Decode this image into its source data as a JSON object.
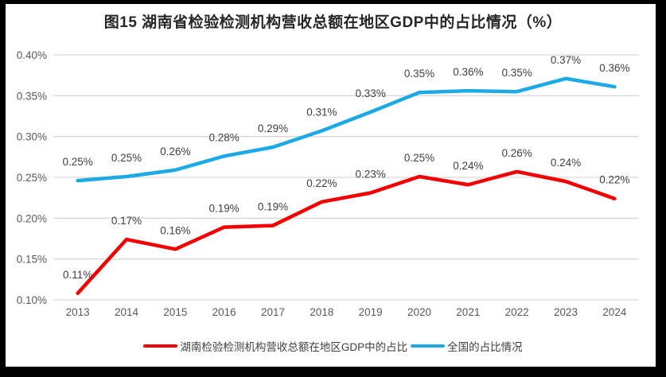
{
  "title": "图15 湖南省检验检测机构营收总额在地区GDP中的占比情况（%）",
  "colors": {
    "hunan": "#f40000",
    "national": "#1ca9e6",
    "grid": "#d9d9d9",
    "axis_text": "#595959",
    "label_text": "#3f3f3f",
    "frame": "#000000",
    "background": "#ffffff"
  },
  "chart_data": {
    "type": "line",
    "title": "图15 湖南省检验检测机构营收总额在地区GDP中的占比情况（%）",
    "categories": [
      "2013",
      "2014",
      "2015",
      "2016",
      "2017",
      "2018",
      "2019",
      "2020",
      "2021",
      "2022",
      "2023",
      "2024"
    ],
    "series": [
      {
        "name": "湖南检验检测机构营收总额在地区GDP中的占比",
        "color_key": "hunan",
        "values": [
          0.108,
          0.174,
          0.162,
          0.189,
          0.191,
          0.22,
          0.231,
          0.251,
          0.241,
          0.257,
          0.245,
          0.224
        ],
        "labels": [
          "0.11%",
          "0.17%",
          "0.16%",
          "0.19%",
          "0.19%",
          "0.22%",
          "0.23%",
          "0.25%",
          "0.24%",
          "0.26%",
          "0.24%",
          "0.22%"
        ]
      },
      {
        "name": "全国的占比情况",
        "color_key": "national",
        "values": [
          0.246,
          0.251,
          0.259,
          0.276,
          0.287,
          0.307,
          0.33,
          0.354,
          0.356,
          0.355,
          0.371,
          0.361
        ],
        "labels": [
          "0.25%",
          "0.25%",
          "0.26%",
          "0.28%",
          "0.29%",
          "0.31%",
          "0.33%",
          "0.35%",
          "0.36%",
          "0.35%",
          "0.37%",
          "0.36%"
        ]
      }
    ],
    "y_axis": {
      "min": 0.1,
      "max": 0.4,
      "step": 0.05,
      "tick_labels": [
        "0.10%",
        "0.15%",
        "0.20%",
        "0.25%",
        "0.30%",
        "0.35%",
        "0.40%"
      ]
    },
    "xlabel": "",
    "ylabel": "",
    "grid": true,
    "legend_position": "bottom"
  }
}
